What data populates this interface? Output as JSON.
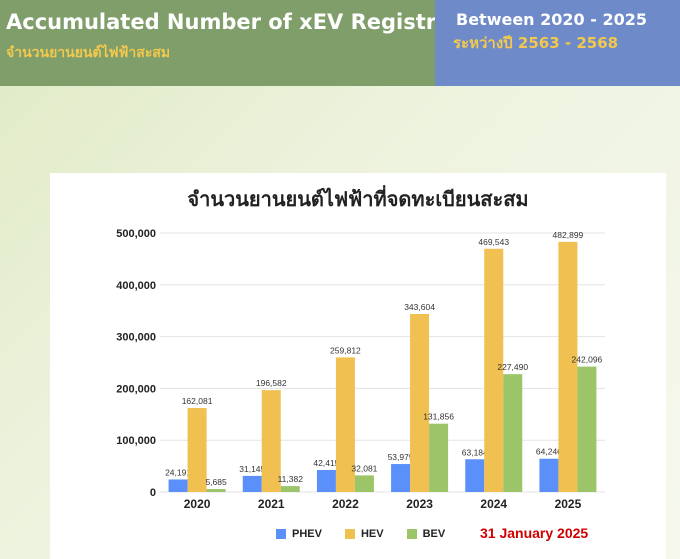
{
  "header": {
    "title": "Accumulated Number of xEV Registration",
    "subtitle": "จำนวนยานยนต์ไฟฟ้าสะสม",
    "period_title": "Between 2020 - 2025",
    "period_subtitle": "ระหว่างปี 2563 - 2568"
  },
  "colors": {
    "header_left": "#7f9e6a",
    "header_right": "#6f8ac8",
    "accent_text": "#f2c94c",
    "note_text": "#d10000",
    "phev": "#5b8ff9",
    "hev": "#f0c050",
    "bev": "#9cc56a"
  },
  "note": "31 January 2025",
  "chart_data": {
    "type": "bar",
    "title": "จำนวนยานยนต์ไฟฟ้าที่จดทะเบียนสะสม",
    "xlabel": "",
    "ylabel": "",
    "categories": [
      "2020",
      "2021",
      "2022",
      "2023",
      "2024",
      "2025"
    ],
    "series": [
      {
        "name": "PHEV",
        "values": [
          24191,
          31145,
          42415,
          53979,
          63184,
          64246
        ]
      },
      {
        "name": "HEV",
        "values": [
          162081,
          196582,
          259812,
          343604,
          469543,
          482899
        ]
      },
      {
        "name": "BEV",
        "values": [
          5685,
          11382,
          32081,
          131856,
          227490,
          242096
        ]
      }
    ],
    "ylim": [
      0,
      500000
    ],
    "yticks": [
      0,
      100000,
      200000,
      300000,
      400000,
      500000
    ],
    "ytick_labels": [
      "0",
      "100,000",
      "200,000",
      "300,000",
      "400,000",
      "500,000"
    ],
    "value_labels": [
      [
        "24,191",
        "31,145",
        "42,415",
        "53,979",
        "63,184",
        "64,246"
      ],
      [
        "162,081",
        "196,582",
        "259,812",
        "343,604",
        "469,543",
        "482,899"
      ],
      [
        "5,685",
        "11,382",
        "32,081",
        "131,856",
        "227,490",
        "242,096"
      ]
    ],
    "legend": "bottom",
    "grid": true
  }
}
